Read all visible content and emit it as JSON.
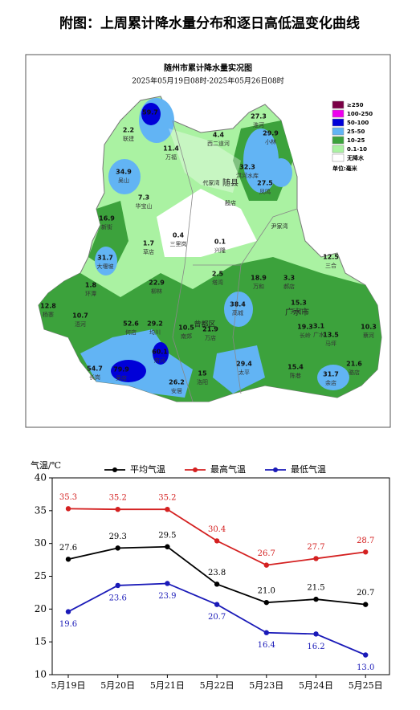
{
  "header": {
    "title": "附图：上周累计降水量分布和逐日高低温变化曲线"
  },
  "map": {
    "title": "随州市累计降水量实况图",
    "subtitle": "2025年05月19日08时-2025年05月26日08时",
    "legend": {
      "items": [
        {
          "label": "≥250",
          "color": "#7a0046"
        },
        {
          "label": "100-250",
          "color": "#ee00ee"
        },
        {
          "label": "50-100",
          "color": "#0000d8"
        },
        {
          "label": "25-50",
          "color": "#62b4f4"
        },
        {
          "label": "10-25",
          "color": "#3ca23c"
        },
        {
          "label": "0.1-10",
          "color": "#aaf2a2"
        },
        {
          "label": "无降水",
          "color": "#ffffff"
        }
      ],
      "unit": "单位:毫米"
    },
    "places": [
      "随县",
      "广水市",
      "曾都区",
      "代家湾",
      "殷店",
      "尹家湾"
    ],
    "stations": [
      {
        "value": 59.7
      },
      {
        "value": 2.2,
        "name": "联建"
      },
      {
        "value": 11.4,
        "name": "万福"
      },
      {
        "value": 4.4,
        "name": "西二道河"
      },
      {
        "value": 27.3,
        "name": "淮河"
      },
      {
        "value": 29.9,
        "name": "小林"
      },
      {
        "value": 34.9,
        "name": "吴山"
      },
      {
        "value": 32.3,
        "name": "洪河水库"
      },
      {
        "value": 27.5,
        "name": "凤鸣"
      },
      {
        "value": 7.3,
        "name": "华宝山"
      },
      {
        "value": 16.9,
        "name": "新街"
      },
      {
        "value": 1.7,
        "name": "草店"
      },
      {
        "value": 0.4,
        "name": "三里岗"
      },
      {
        "value": 0.1,
        "name": "兴隆"
      },
      {
        "value": 12.5,
        "name": "三合"
      },
      {
        "value": 31.7,
        "name": "大堰坡"
      },
      {
        "value": 1.8,
        "name": "环潭"
      },
      {
        "value": 2.5,
        "name": "塔湾"
      },
      {
        "value": 18.9,
        "name": "万和"
      },
      {
        "value": 3.3,
        "name": "郝店"
      },
      {
        "value": 22.9,
        "name": "柳林"
      },
      {
        "value": 15.3,
        "name": "天河口"
      },
      {
        "value": 12.8,
        "name": "杨寨"
      },
      {
        "value": 10.7,
        "name": "浯河"
      },
      {
        "value": 38.4,
        "name": "高城"
      },
      {
        "value": 52.6,
        "name": "何店"
      },
      {
        "value": 29.2,
        "name": "均川"
      },
      {
        "value": 19.3,
        "name": "长岭"
      },
      {
        "value": 3.1,
        "name": "广水"
      },
      {
        "value": 13.5,
        "name": "马坪"
      },
      {
        "value": 10.3,
        "name": "蔡河"
      },
      {
        "value": 10.5,
        "name": "南郊"
      },
      {
        "value": 21.9,
        "name": "万店"
      },
      {
        "value": 60.1,
        "name": "府河"
      },
      {
        "value": 29.4,
        "name": "太平"
      },
      {
        "value": 54.7,
        "name": "长岗"
      },
      {
        "value": 79.9,
        "name": "吴店"
      },
      {
        "value": 15,
        "name": "洛阳"
      },
      {
        "value": 15.4,
        "name": "陈巷"
      },
      {
        "value": 21.6,
        "name": "骆店"
      },
      {
        "value": 26.2,
        "name": "安居"
      },
      {
        "value": 31.7,
        "name": "余店"
      }
    ]
  },
  "chart_data": {
    "type": "line",
    "y_label": "气温/℃",
    "categories": [
      "5月19日",
      "5月20日",
      "5月21日",
      "5月22日",
      "5月23日",
      "5月24日",
      "5月25日"
    ],
    "series": [
      {
        "name": "平均气温",
        "color": "#000000",
        "values": [
          27.6,
          29.3,
          29.5,
          23.8,
          21.0,
          21.5,
          20.7
        ],
        "value_labels": [
          "27.6",
          "29.3",
          "29.5",
          "23.8",
          "21.0",
          "21.5",
          "20.7"
        ]
      },
      {
        "name": "最高气温",
        "color": "#d42020",
        "values": [
          35.3,
          35.2,
          35.2,
          30.4,
          26.7,
          27.7,
          28.7
        ],
        "value_labels": [
          "35.3",
          "35.2",
          "35.2",
          "30.4",
          "26.7",
          "27.7",
          "28.7"
        ]
      },
      {
        "name": "最低气温",
        "color": "#1a1ab8",
        "values": [
          19.6,
          23.6,
          23.9,
          20.7,
          16.4,
          16.2,
          13.0
        ],
        "value_labels": [
          "19.6",
          "23.6",
          "23.9",
          "20.7",
          "16.4",
          "16.2",
          "13.0"
        ]
      }
    ],
    "ylim": [
      10,
      40
    ],
    "yticks": [
      10,
      15,
      20,
      25,
      30,
      35,
      40
    ]
  }
}
